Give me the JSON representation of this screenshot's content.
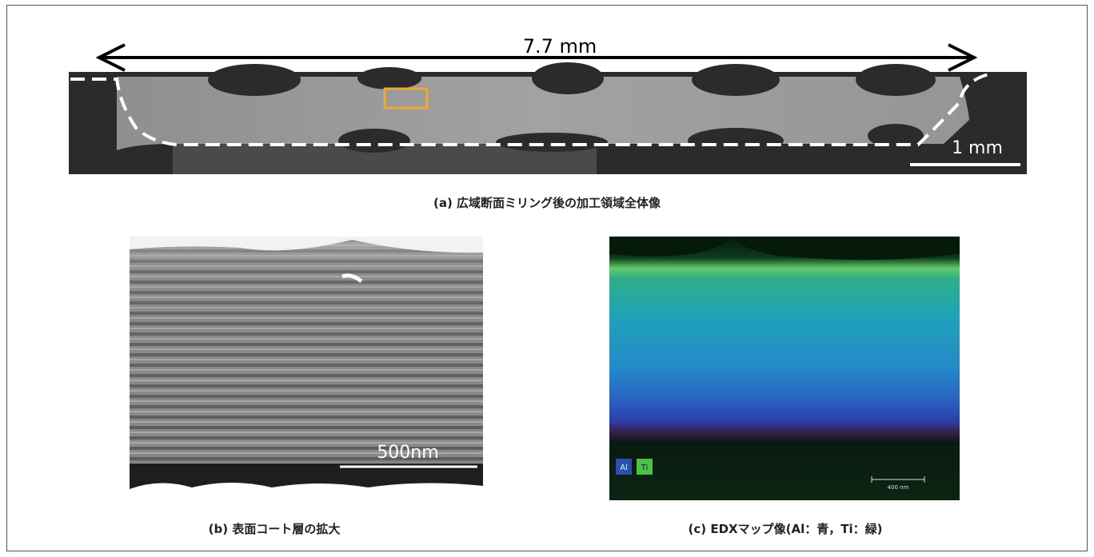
{
  "panels": [
    {
      "dimension_label": "7.7 mm",
      "scale_bar_label": "1 mm",
      "caption": "(a) 広域断面ミリング後の加工領域全体像"
    },
    {
      "scale_bar_label": "500nm",
      "caption": "(b) 表面コート層の拡大"
    },
    {
      "legend": [
        "Al",
        "Ti"
      ],
      "scale_bar_label": "400 nm",
      "caption": "(c) EDXマップ像(Al：青，Ti：緑)"
    }
  ]
}
